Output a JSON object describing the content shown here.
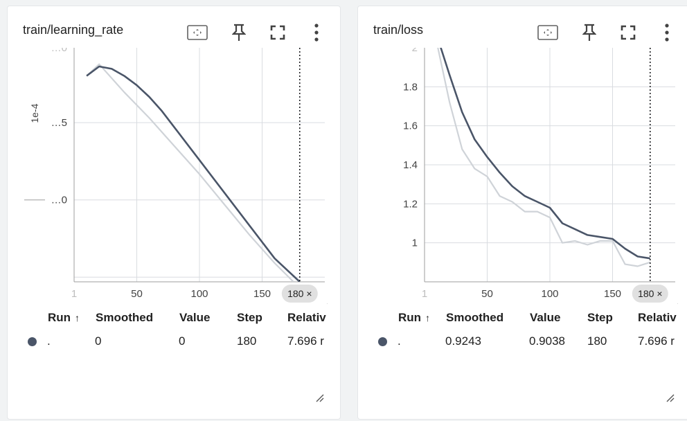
{
  "cards": [
    {
      "title": "train/learning_rate",
      "y_axis_label": "1e-4",
      "step_badge": "180 ×",
      "table": {
        "headers": [
          "Run",
          "Smoothed",
          "Value",
          "Step",
          "Relativ"
        ],
        "sort_indicator": "↑",
        "row": {
          "run": ".",
          "smoothed": "0",
          "value": "0",
          "step": "180",
          "relative": "7.696 r"
        }
      },
      "chart_data": {
        "type": "line",
        "title": "train/learning_rate",
        "xlabel": "",
        "ylabel": "1e-4",
        "x_ticks": [
          "1",
          "50",
          "100",
          "150"
        ],
        "y_ticks": [
          "…0",
          "…5",
          "…0"
        ],
        "xlim": [
          0,
          200
        ],
        "ylim": [
          0,
          1
        ],
        "cursor_step": 180,
        "series": [
          {
            "name": "",
            "role": "raw",
            "color": "#cfd3d8",
            "x": [
              10,
              20,
              40,
              60,
              80,
              100,
              120,
              140,
              160,
              175
            ],
            "y": [
              0.88,
              0.93,
              0.81,
              0.7,
              0.58,
              0.46,
              0.33,
              0.2,
              0.08,
              0.0
            ]
          },
          {
            "name": "",
            "role": "smoothed",
            "color": "#4a5568",
            "x": [
              10,
              20,
              30,
              40,
              50,
              60,
              70,
              80,
              90,
              100,
              120,
              140,
              160,
              180
            ],
            "y": [
              0.88,
              0.92,
              0.91,
              0.88,
              0.84,
              0.79,
              0.73,
              0.66,
              0.59,
              0.52,
              0.38,
              0.24,
              0.1,
              0.0
            ]
          }
        ],
        "grid": true
      }
    },
    {
      "title": "train/loss",
      "y_axis_label": "",
      "step_badge": "180 ×",
      "table": {
        "headers": [
          "Run",
          "Smoothed",
          "Value",
          "Step",
          "Relativ"
        ],
        "sort_indicator": "↑",
        "row": {
          "run": ".",
          "smoothed": "0.9243",
          "value": "0.9038",
          "step": "180",
          "relative": "7.696 r"
        }
      },
      "chart_data": {
        "type": "line",
        "title": "train/loss",
        "xlabel": "",
        "ylabel": "",
        "x_ticks": [
          "1",
          "50",
          "100",
          "150"
        ],
        "y_ticks": [
          "1",
          "1.2",
          "1.4",
          "1.6",
          "1.8",
          "2"
        ],
        "xlim": [
          0,
          200
        ],
        "ylim": [
          0.8,
          2.0
        ],
        "cursor_step": 180,
        "series": [
          {
            "name": "",
            "role": "raw",
            "color": "#cfd3d8",
            "x": [
              10,
              20,
              30,
              40,
              50,
              60,
              70,
              80,
              90,
              100,
              110,
              120,
              130,
              140,
              150,
              160,
              170,
              180
            ],
            "y": [
              2.02,
              1.72,
              1.48,
              1.38,
              1.34,
              1.24,
              1.21,
              1.16,
              1.16,
              1.13,
              1.0,
              1.01,
              0.99,
              1.01,
              1.01,
              0.89,
              0.88,
              0.9
            ]
          },
          {
            "name": "",
            "role": "smoothed",
            "color": "#4a5568",
            "x": [
              10,
              20,
              30,
              40,
              50,
              60,
              70,
              80,
              90,
              100,
              110,
              120,
              130,
              140,
              150,
              160,
              170,
              180
            ],
            "y": [
              2.06,
              1.86,
              1.67,
              1.53,
              1.44,
              1.36,
              1.29,
              1.24,
              1.21,
              1.18,
              1.1,
              1.07,
              1.04,
              1.03,
              1.02,
              0.97,
              0.93,
              0.92
            ]
          }
        ],
        "grid": true
      }
    }
  ],
  "icons": {
    "fit": "fit-domain-icon",
    "pin": "pin-icon",
    "fullscreen": "fullscreen-icon",
    "more": "more-vert-icon",
    "resize": "resize-handle-icon"
  },
  "colors": {
    "run_dot": "#4a5568",
    "grid": "#d9dce0",
    "cursor": "#202124",
    "badge_bg": "#e0e0e0"
  }
}
